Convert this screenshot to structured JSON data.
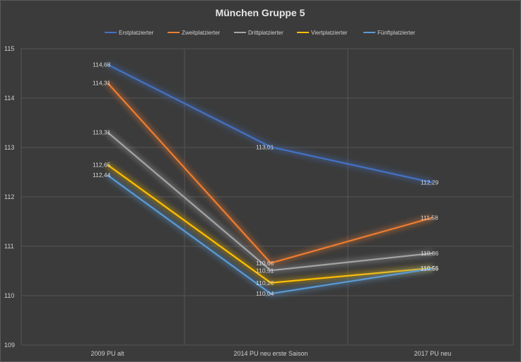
{
  "chart_data": {
    "type": "line",
    "title": "München Gruppe 5",
    "xlabel": "",
    "ylabel": "",
    "categories": [
      "2009 PU alt",
      "2014 PU neu erste Saison",
      "2017 PU neu"
    ],
    "ylim": [
      109,
      115
    ],
    "yticks": [
      "109",
      "110",
      "111",
      "112",
      "113",
      "114",
      "115"
    ],
    "grid": true,
    "legend_position": "top",
    "series": [
      {
        "name": "Erstplatzierter",
        "color": "#4472c4",
        "values": [
          114.68,
          113.01,
          112.29
        ],
        "labels": [
          "114,68",
          "113,01",
          "112,29"
        ]
      },
      {
        "name": "Zweitplatzierter",
        "color": "#ed7d31",
        "values": [
          114.31,
          110.66,
          111.58
        ],
        "labels": [
          "114,31",
          "110,66",
          "111,58"
        ]
      },
      {
        "name": "Drittplatzierter",
        "color": "#a5a5a5",
        "values": [
          113.31,
          110.51,
          110.86
        ],
        "labels": [
          "113,31",
          "110,51",
          "110,86"
        ]
      },
      {
        "name": "Viertplatzierter",
        "color": "#ffc000",
        "values": [
          112.65,
          110.26,
          110.56
        ],
        "labels": [
          "112,65",
          "110,26",
          "110,56"
        ]
      },
      {
        "name": "Fünftplatzierter",
        "color": "#5b9bd5",
        "values": [
          112.44,
          110.04,
          110.55
        ],
        "labels": [
          "112,44",
          "110,04",
          "110,55"
        ]
      }
    ]
  }
}
